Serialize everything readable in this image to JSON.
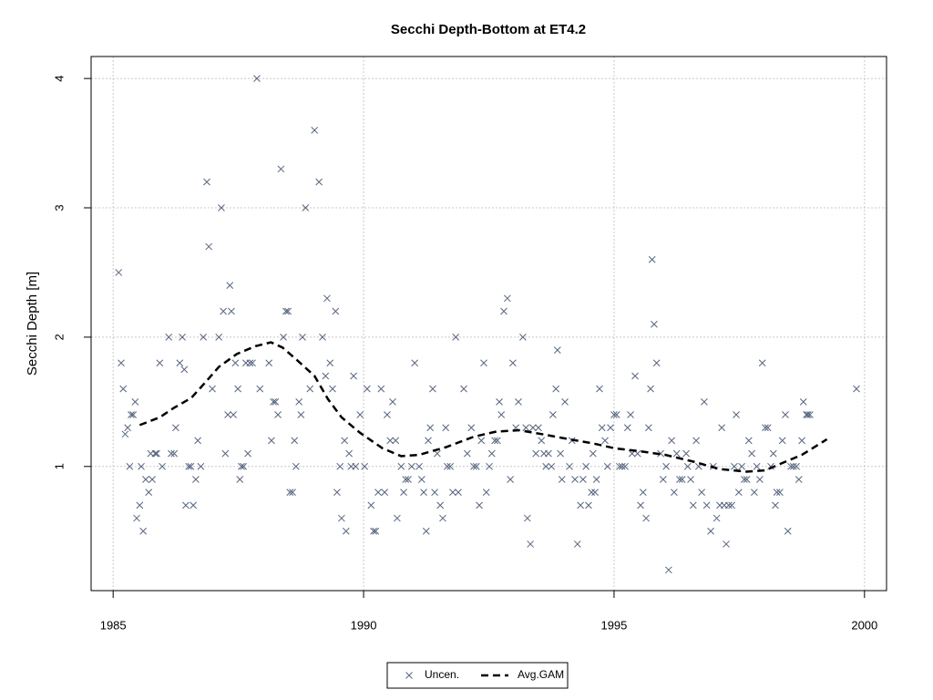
{
  "chart_data": {
    "type": "scatter",
    "title": "Secchi Depth-Bottom at ET4.2",
    "y_label": "Secchi Depth [m]",
    "xlim": [
      1984.56,
      2000.44
    ],
    "ylim": [
      0.04,
      4.17
    ],
    "xticks": [
      1985,
      1990,
      1995,
      2000
    ],
    "yticks": [
      1,
      2,
      3,
      4
    ],
    "grid": true,
    "legend": "bottom",
    "series": [
      {
        "name": "Uncen.",
        "color": "#56657f",
        "marker": "x",
        "x": [
          1985.11,
          1985.16,
          1985.2,
          1985.24,
          1985.29,
          1985.33,
          1985.36,
          1985.4,
          1985.44,
          1985.47,
          1985.53,
          1985.56,
          1985.6,
          1985.65,
          1985.71,
          1985.75,
          1985.78,
          1985.84,
          1985.87,
          1985.93,
          1985.98,
          1986.11,
          1986.16,
          1986.22,
          1986.25,
          1986.33,
          1986.38,
          1986.42,
          1986.45,
          1986.51,
          1986.55,
          1986.6,
          1986.65,
          1986.69,
          1986.75,
          1986.8,
          1986.87,
          1986.91,
          1986.98,
          1987.11,
          1987.16,
          1987.2,
          1987.24,
          1987.29,
          1987.33,
          1987.36,
          1987.4,
          1987.44,
          1987.49,
          1987.53,
          1987.56,
          1987.6,
          1987.65,
          1987.69,
          1987.73,
          1987.78,
          1987.87,
          1987.93,
          1988.11,
          1988.16,
          1988.2,
          1988.24,
          1988.29,
          1988.35,
          1988.4,
          1988.45,
          1988.49,
          1988.53,
          1988.58,
          1988.62,
          1988.65,
          1988.71,
          1988.75,
          1988.78,
          1988.84,
          1988.93,
          1989.02,
          1989.11,
          1989.18,
          1989.24,
          1989.27,
          1989.33,
          1989.38,
          1989.44,
          1989.47,
          1989.53,
          1989.56,
          1989.62,
          1989.65,
          1989.71,
          1989.75,
          1989.8,
          1989.84,
          1989.93,
          1990.02,
          1990.07,
          1990.15,
          1990.2,
          1990.24,
          1990.29,
          1990.35,
          1990.42,
          1990.47,
          1990.53,
          1990.58,
          1990.64,
          1990.67,
          1990.75,
          1990.8,
          1990.84,
          1990.89,
          1990.96,
          1991.02,
          1991.11,
          1991.16,
          1991.2,
          1991.25,
          1991.29,
          1991.33,
          1991.38,
          1991.42,
          1991.47,
          1991.53,
          1991.58,
          1991.64,
          1991.67,
          1991.73,
          1991.78,
          1991.84,
          1991.89,
          1992.0,
          1992.07,
          1992.15,
          1992.2,
          1992.25,
          1992.31,
          1992.35,
          1992.4,
          1992.45,
          1992.51,
          1992.56,
          1992.62,
          1992.67,
          1992.71,
          1992.75,
          1992.8,
          1992.87,
          1992.93,
          1992.98,
          1993.04,
          1993.09,
          1993.18,
          1993.24,
          1993.27,
          1993.33,
          1993.38,
          1993.44,
          1993.49,
          1993.55,
          1993.6,
          1993.64,
          1993.69,
          1993.75,
          1993.78,
          1993.84,
          1993.87,
          1993.93,
          1993.96,
          1994.02,
          1994.11,
          1994.16,
          1994.22,
          1994.27,
          1994.33,
          1994.38,
          1994.44,
          1994.49,
          1994.55,
          1994.58,
          1994.62,
          1994.65,
          1994.71,
          1994.76,
          1994.82,
          1994.87,
          1994.93,
          1995.0,
          1995.05,
          1995.11,
          1995.16,
          1995.22,
          1995.27,
          1995.33,
          1995.36,
          1995.42,
          1995.47,
          1995.53,
          1995.58,
          1995.64,
          1995.69,
          1995.73,
          1995.76,
          1995.8,
          1995.85,
          1995.93,
          1995.98,
          1996.04,
          1996.09,
          1996.15,
          1996.2,
          1996.25,
          1996.31,
          1996.36,
          1996.44,
          1996.47,
          1996.53,
          1996.58,
          1996.64,
          1996.69,
          1996.75,
          1996.8,
          1996.85,
          1996.93,
          1996.98,
          1997.05,
          1997.11,
          1997.15,
          1997.2,
          1997.24,
          1997.29,
          1997.35,
          1997.4,
          1997.44,
          1997.49,
          1997.55,
          1997.6,
          1997.65,
          1997.69,
          1997.75,
          1997.8,
          1997.85,
          1997.91,
          1997.96,
          1998.02,
          1998.07,
          1998.13,
          1998.18,
          1998.22,
          1998.25,
          1998.31,
          1998.36,
          1998.42,
          1998.47,
          1998.53,
          1998.58,
          1998.64,
          1998.69,
          1998.75,
          1998.78,
          1998.84,
          1998.87,
          1998.91,
          1999.84
        ],
        "values": [
          2.5,
          1.8,
          1.6,
          1.25,
          1.3,
          1.0,
          1.4,
          1.4,
          1.5,
          0.6,
          0.7,
          1.0,
          0.5,
          0.9,
          0.8,
          1.1,
          0.9,
          1.1,
          1.1,
          1.8,
          1.0,
          2.0,
          1.1,
          1.1,
          1.3,
          1.8,
          2.0,
          1.75,
          0.7,
          1.0,
          1.0,
          0.7,
          0.9,
          1.2,
          1.0,
          2.0,
          3.2,
          2.7,
          1.6,
          2.0,
          3.0,
          2.2,
          1.1,
          1.4,
          2.4,
          2.2,
          1.4,
          1.8,
          1.6,
          0.9,
          1.0,
          1.0,
          1.8,
          1.1,
          1.8,
          1.8,
          4.0,
          1.6,
          1.8,
          1.2,
          1.5,
          1.5,
          1.4,
          3.3,
          2.0,
          2.2,
          2.2,
          0.8,
          0.8,
          1.2,
          1.0,
          1.5,
          1.4,
          2.0,
          3.0,
          1.6,
          3.6,
          3.2,
          2.0,
          1.7,
          2.3,
          1.8,
          1.6,
          2.2,
          0.8,
          1.0,
          0.6,
          1.2,
          0.5,
          1.1,
          1.0,
          1.7,
          1.0,
          1.4,
          1.0,
          1.6,
          0.7,
          0.5,
          0.5,
          0.8,
          1.6,
          0.8,
          1.4,
          1.2,
          1.5,
          1.2,
          0.6,
          1.0,
          0.8,
          0.9,
          0.9,
          1.0,
          1.8,
          1.0,
          0.9,
          0.8,
          0.5,
          1.2,
          1.3,
          1.6,
          0.8,
          1.1,
          0.7,
          0.6,
          1.3,
          1.0,
          1.0,
          0.8,
          2.0,
          0.8,
          1.6,
          1.1,
          1.3,
          1.0,
          1.0,
          0.7,
          1.2,
          1.8,
          0.8,
          1.0,
          1.1,
          1.2,
          1.2,
          1.5,
          1.4,
          2.2,
          2.3,
          0.9,
          1.8,
          1.3,
          1.5,
          2.0,
          1.3,
          0.6,
          0.4,
          1.3,
          1.1,
          1.3,
          1.2,
          1.1,
          1.0,
          1.1,
          1.0,
          1.4,
          1.6,
          1.9,
          1.1,
          0.9,
          1.5,
          1.0,
          1.2,
          0.9,
          0.4,
          0.7,
          0.9,
          1.0,
          0.7,
          0.8,
          1.1,
          0.8,
          0.9,
          1.6,
          1.3,
          1.2,
          1.0,
          1.3,
          1.4,
          1.4,
          1.0,
          1.0,
          1.0,
          1.3,
          1.4,
          1.1,
          1.7,
          1.1,
          0.7,
          0.8,
          0.6,
          1.3,
          1.6,
          2.6,
          2.1,
          1.8,
          1.1,
          0.9,
          1.0,
          0.2,
          1.2,
          0.8,
          1.1,
          0.9,
          0.9,
          1.1,
          1.0,
          0.9,
          0.7,
          1.2,
          1.0,
          0.8,
          1.5,
          0.7,
          0.5,
          1.0,
          0.6,
          0.7,
          1.3,
          0.7,
          0.4,
          0.7,
          0.7,
          1.0,
          1.4,
          0.8,
          1.0,
          0.9,
          0.9,
          1.2,
          1.1,
          0.8,
          1.0,
          0.9,
          1.8,
          1.3,
          1.3,
          1.0,
          1.1,
          0.7,
          0.8,
          0.8,
          1.2,
          1.4,
          0.5,
          1.0,
          1.0,
          1.0,
          0.9,
          1.2,
          1.5,
          1.4,
          1.4,
          1.4,
          1.6
        ]
      },
      {
        "name": "Avg.GAM",
        "color": "#000000",
        "dash": "8,5",
        "x": [
          1985.53,
          1985.93,
          1986.2,
          1986.56,
          1986.84,
          1987.11,
          1987.47,
          1987.84,
          1988.15,
          1988.38,
          1988.65,
          1989.02,
          1989.29,
          1989.56,
          1989.93,
          1990.38,
          1990.75,
          1991.11,
          1991.65,
          1992.2,
          1992.65,
          1993.11,
          1993.56,
          1994.11,
          1994.56,
          1995.02,
          1995.47,
          1996.02,
          1996.56,
          1997.11,
          1997.65,
          1998.02,
          1998.38,
          1998.75,
          1999.25
        ],
        "values": [
          1.32,
          1.38,
          1.45,
          1.53,
          1.65,
          1.77,
          1.87,
          1.93,
          1.96,
          1.92,
          1.83,
          1.7,
          1.52,
          1.38,
          1.26,
          1.14,
          1.08,
          1.09,
          1.15,
          1.23,
          1.27,
          1.28,
          1.25,
          1.21,
          1.18,
          1.14,
          1.12,
          1.09,
          1.04,
          0.98,
          0.96,
          0.97,
          1.03,
          1.09,
          1.21
        ]
      }
    ]
  }
}
